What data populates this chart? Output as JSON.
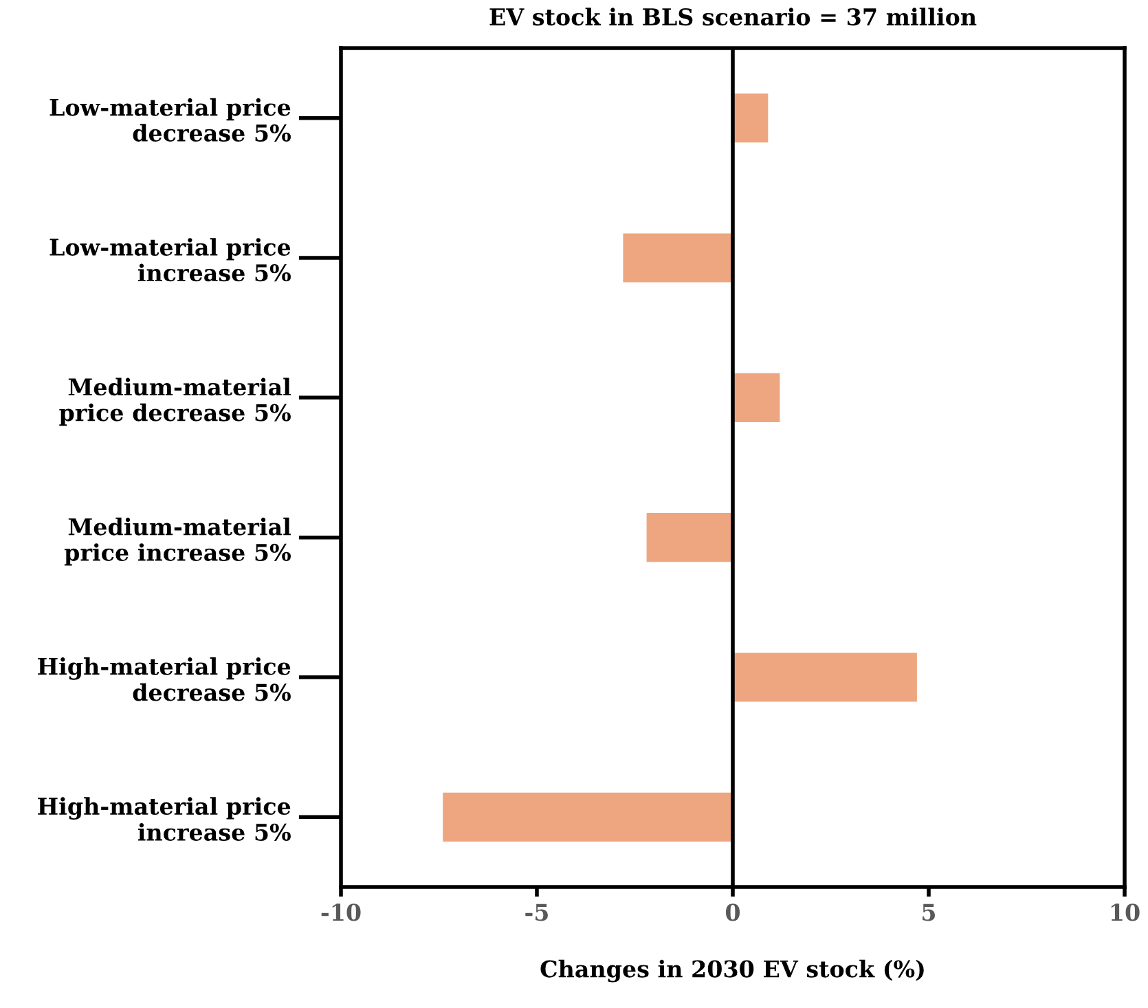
{
  "chart_data": {
    "type": "bar",
    "orientation": "horizontal",
    "title": "EV stock in BLS scenario = 37 million",
    "xlabel": "Changes in 2030 EV stock (%)",
    "categories": [
      "Low-material price\ndecrease 5%",
      "Low-material price\nincrease 5%",
      "Medium-material\nprice decrease 5%",
      "Medium-material\nprice increase 5%",
      "High-material price\ndecrease 5%",
      "High-material price\nincrease 5%"
    ],
    "values": [
      0.9,
      -2.8,
      1.2,
      -2.2,
      4.7,
      -7.4
    ],
    "color": "#eda67f",
    "xlim": [
      -10,
      10
    ],
    "xticks": [
      -10,
      -5,
      0,
      5,
      10
    ],
    "ref_lines": [
      {
        "axis": "x",
        "value": 0,
        "color": "#000000"
      }
    ],
    "grid": false,
    "legend": false
  }
}
